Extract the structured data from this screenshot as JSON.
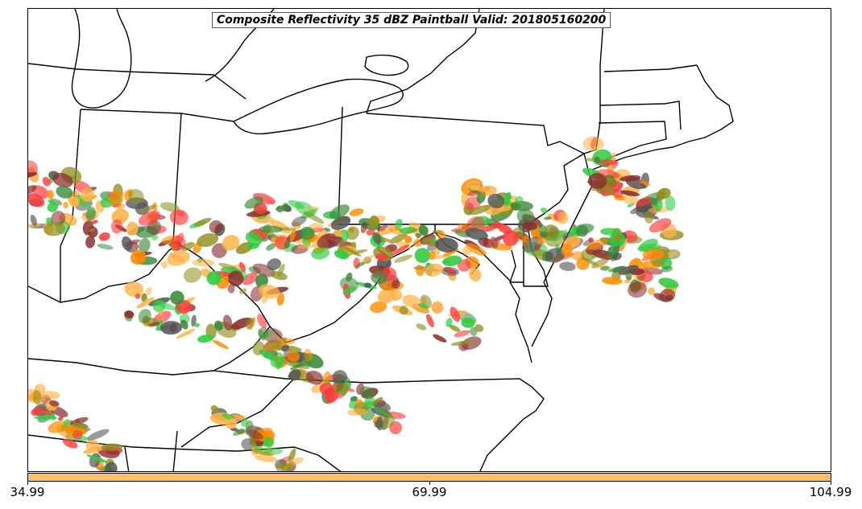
{
  "title": "Composite Reflectivity 35 dBZ Paintball Valid: 201805160200",
  "colorbar": {
    "color": "#fdc06a",
    "ticks": [
      "34.99",
      "69.99",
      "104.99"
    ]
  },
  "colors": {
    "member_orange": "#ff8c00",
    "member_light_orange": "#ffb347",
    "member_red": "#ff3b3b",
    "member_dark_red": "#8b2e2e",
    "member_green": "#2ecc40",
    "member_dark_green": "#3a8a3a",
    "member_olive": "#8f8f1f",
    "member_gray": "#555555",
    "border": "#000000"
  }
}
